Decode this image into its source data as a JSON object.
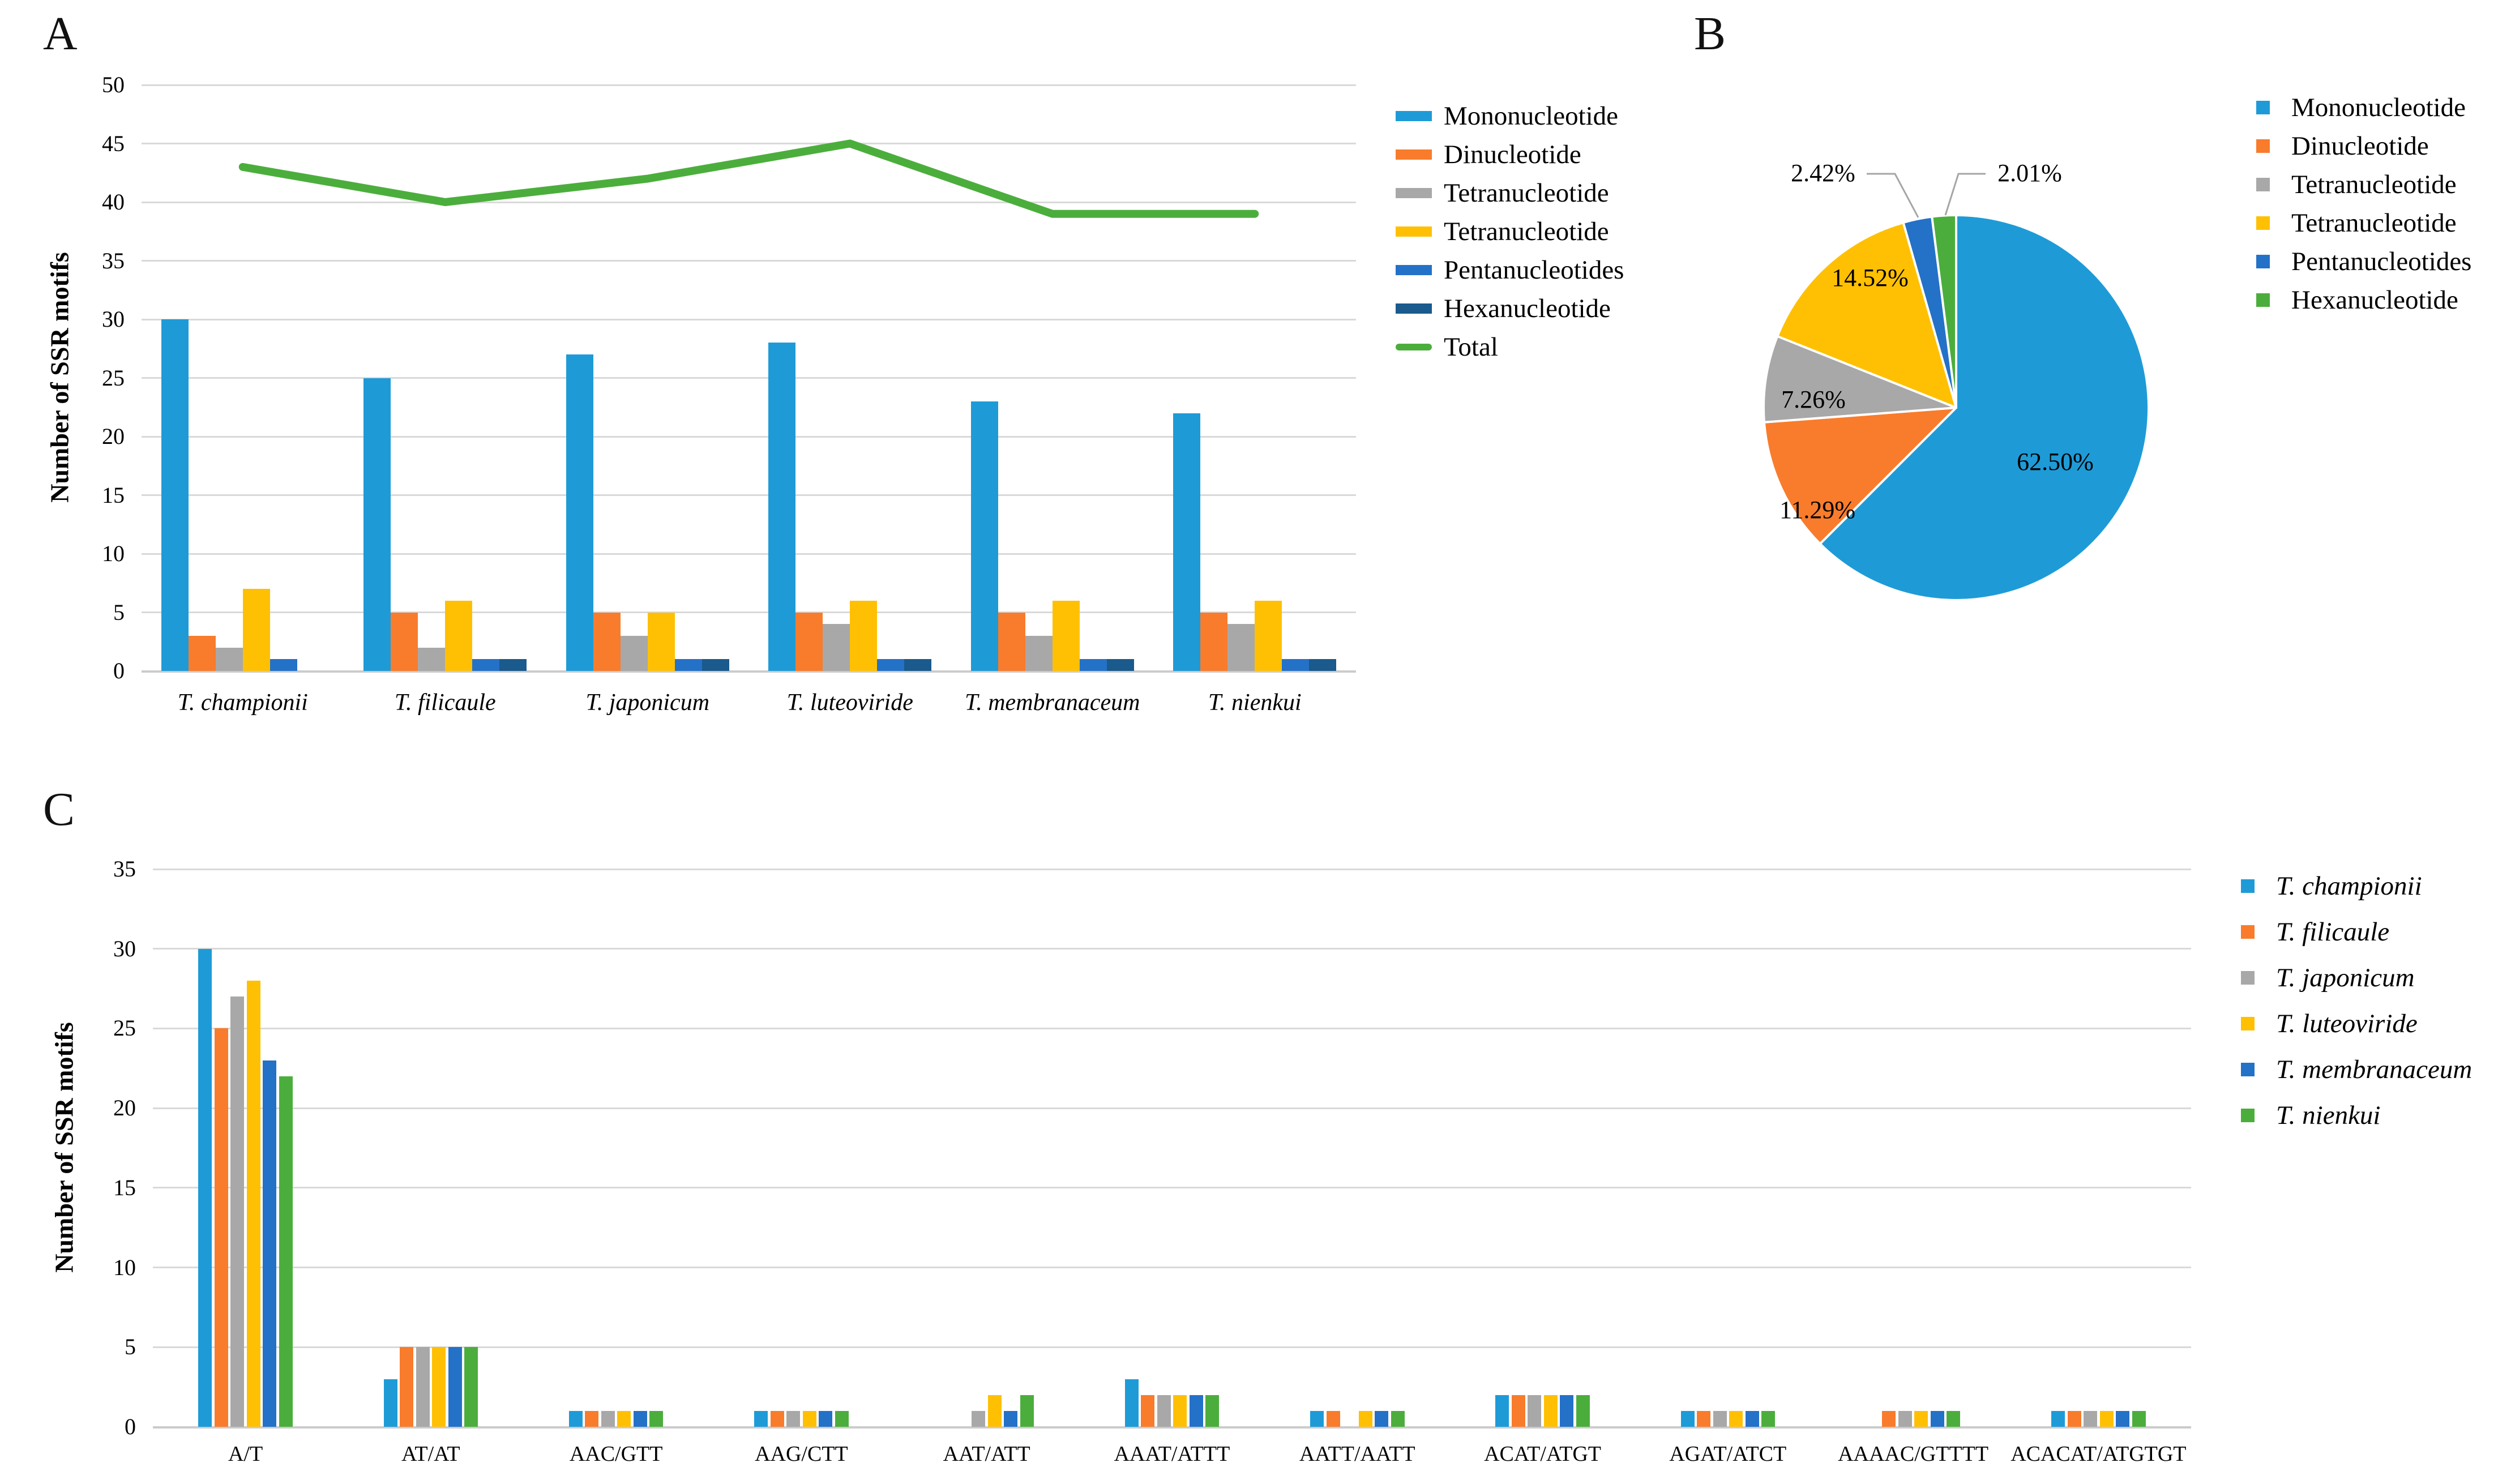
{
  "figure": {
    "panel_a_label": "A",
    "panel_b_label": "B",
    "panel_c_label": "C"
  },
  "colors": {
    "mononucleotide": "#1E9BD7",
    "dinucleotide": "#F87C2C",
    "tetranucleotide_gray": "#A8A8A8",
    "tetranucleotide_yellow": "#FFC003",
    "pentanucleotides": "#2471C8",
    "hexanucleotide_dark": "#1A5A8C",
    "total_green": "#4BAE3C",
    "gridline": "#D9D9D9",
    "axis_line": "#CBCBCB",
    "leader_line": "#A6A6A6",
    "text": "#000000"
  },
  "chart_data": [
    {
      "id": "panel_a",
      "panel_label": "A",
      "type": "bar",
      "title": "",
      "xlabel": "",
      "ylabel": "Number of SSR motifs",
      "ylim": [
        0,
        50
      ],
      "ytick_step": 5,
      "ytick_labels": [
        "0",
        "5",
        "10",
        "15",
        "20",
        "25",
        "30",
        "35",
        "40",
        "45",
        "50"
      ],
      "grid": true,
      "legend_position": "right",
      "categories": [
        "T. championii",
        "T. filicaule",
        "T. japonicum",
        "T. luteoviride",
        "T. membranaceum",
        "T. nienkui"
      ],
      "series": [
        {
          "name": "Mononucleotide",
          "color_key": "mononucleotide",
          "values": [
            30,
            25,
            27,
            28,
            23,
            22
          ]
        },
        {
          "name": "Dinucleotide",
          "color_key": "dinucleotide",
          "values": [
            3,
            5,
            5,
            5,
            5,
            5
          ]
        },
        {
          "name": "Tetranucleotide",
          "color_key": "tetranucleotide_gray",
          "values": [
            2,
            2,
            3,
            4,
            3,
            4
          ]
        },
        {
          "name": "Tetranucleotide",
          "color_key": "tetranucleotide_yellow",
          "values": [
            7,
            6,
            5,
            6,
            6,
            6
          ]
        },
        {
          "name": "Pentanucleotides",
          "color_key": "pentanucleotides",
          "values": [
            1,
            1,
            1,
            1,
            1,
            1
          ]
        },
        {
          "name": "Hexanucleotide",
          "color_key": "hexanucleotide_dark",
          "values": [
            0,
            1,
            1,
            1,
            1,
            1
          ]
        }
      ],
      "line_series": {
        "name": "Total",
        "color_key": "total_green",
        "values": [
          43,
          40,
          42,
          45,
          39,
          39
        ]
      },
      "legend": [
        {
          "label": "Mononucleotide",
          "color_key": "mononucleotide",
          "swatch": "bar"
        },
        {
          "label": "Dinucleotide",
          "color_key": "dinucleotide",
          "swatch": "bar"
        },
        {
          "label": "Tetranucleotide",
          "color_key": "tetranucleotide_gray",
          "swatch": "bar"
        },
        {
          "label": "Tetranucleotide",
          "color_key": "tetranucleotide_yellow",
          "swatch": "bar"
        },
        {
          "label": "Pentanucleotides",
          "color_key": "pentanucleotides",
          "swatch": "bar"
        },
        {
          "label": "Hexanucleotide",
          "color_key": "hexanucleotide_dark",
          "swatch": "bar"
        },
        {
          "label": "Total",
          "color_key": "total_green",
          "swatch": "line"
        }
      ]
    },
    {
      "id": "panel_b",
      "panel_label": "B",
      "type": "pie",
      "start_angle_deg": 0,
      "direction": "clockwise",
      "slices": [
        {
          "label": "Mononucleotide",
          "pct": 62.5,
          "display": "62.50%",
          "color_key": "mononucleotide",
          "label_placement": "inside"
        },
        {
          "label": "Dinucleotide",
          "pct": 11.29,
          "display": "11.29%",
          "color_key": "dinucleotide",
          "label_placement": "inside"
        },
        {
          "label": "Tetranucleotide",
          "pct": 7.26,
          "display": "7.26%",
          "color_key": "tetranucleotide_gray",
          "label_placement": "inside"
        },
        {
          "label": "Tetranucleotide",
          "pct": 14.52,
          "display": "14.52%",
          "color_key": "tetranucleotide_yellow",
          "label_placement": "inside"
        },
        {
          "label": "Pentanucleotides",
          "pct": 2.42,
          "display": "2.42%",
          "color_key": "pentanucleotides",
          "label_placement": "outside"
        },
        {
          "label": "Hexanucleotide",
          "pct": 2.01,
          "display": "2.01%",
          "color_key": "total_green",
          "label_placement": "outside"
        }
      ],
      "legend": [
        {
          "label": "Mononucleotide",
          "color_key": "mononucleotide",
          "swatch": "square"
        },
        {
          "label": "Dinucleotide",
          "color_key": "dinucleotide",
          "swatch": "square"
        },
        {
          "label": "Tetranucleotide",
          "color_key": "tetranucleotide_gray",
          "swatch": "square"
        },
        {
          "label": "Tetranucleotide",
          "color_key": "tetranucleotide_yellow",
          "swatch": "square"
        },
        {
          "label": "Pentanucleotides",
          "color_key": "pentanucleotides",
          "swatch": "square"
        },
        {
          "label": "Hexanucleotide",
          "color_key": "total_green",
          "swatch": "square"
        }
      ]
    },
    {
      "id": "panel_c",
      "panel_label": "C",
      "type": "bar",
      "title": "",
      "xlabel": "",
      "ylabel": "Number of SSR motifs",
      "ylim": [
        0,
        35
      ],
      "ytick_step": 5,
      "ytick_labels": [
        "0",
        "5",
        "10",
        "15",
        "20",
        "25",
        "30",
        "35"
      ],
      "grid": true,
      "legend_position": "right",
      "categories": [
        "A/T",
        "AT/AT",
        "AAC/GTT",
        "AAG/CTT",
        "AAT/ATT",
        "AAAT/ATTT",
        "AATT/AATT",
        "ACAT/ATGT",
        "AGAT/ATCT",
        "AAAAC/GTTTT",
        "ACACAT/ATGTGT"
      ],
      "series": [
        {
          "name": "T. championii",
          "color_key": "mononucleotide",
          "values": [
            30,
            3,
            1,
            1,
            0,
            3,
            1,
            2,
            1,
            0,
            1
          ]
        },
        {
          "name": "T. filicaule",
          "color_key": "dinucleotide",
          "values": [
            25,
            5,
            1,
            1,
            0,
            2,
            1,
            2,
            1,
            1,
            1
          ]
        },
        {
          "name": "T. japonicum",
          "color_key": "tetranucleotide_gray",
          "values": [
            27,
            5,
            1,
            1,
            1,
            2,
            0,
            2,
            1,
            1,
            1
          ]
        },
        {
          "name": "T. luteoviride",
          "color_key": "tetranucleotide_yellow",
          "values": [
            28,
            5,
            1,
            1,
            2,
            2,
            1,
            2,
            1,
            1,
            1
          ]
        },
        {
          "name": "T. membranaceum",
          "color_key": "pentanucleotides",
          "values": [
            23,
            5,
            1,
            1,
            1,
            2,
            1,
            2,
            1,
            1,
            1
          ]
        },
        {
          "name": "T. nienkui",
          "color_key": "total_green",
          "values": [
            22,
            5,
            1,
            1,
            2,
            2,
            1,
            2,
            1,
            1,
            1
          ]
        }
      ],
      "legend": [
        {
          "label": "T. championii",
          "color_key": "mononucleotide",
          "swatch": "square",
          "italic": true
        },
        {
          "label": "T. filicaule",
          "color_key": "dinucleotide",
          "swatch": "square",
          "italic": true
        },
        {
          "label": "T. japonicum",
          "color_key": "tetranucleotide_gray",
          "swatch": "square",
          "italic": true
        },
        {
          "label": "T. luteoviride",
          "color_key": "tetranucleotide_yellow",
          "swatch": "square",
          "italic": true
        },
        {
          "label": "T. membranaceum",
          "color_key": "pentanucleotides",
          "swatch": "square",
          "italic": true
        },
        {
          "label": "T. nienkui",
          "color_key": "total_green",
          "swatch": "square",
          "italic": true
        }
      ]
    }
  ]
}
